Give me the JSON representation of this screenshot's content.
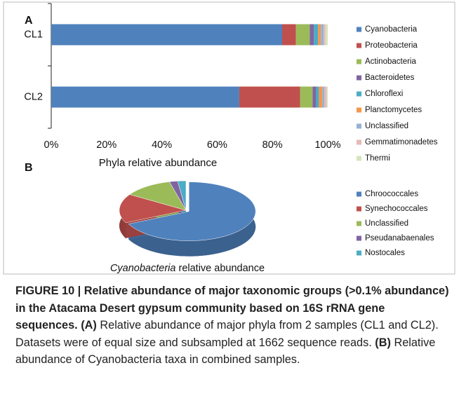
{
  "chart_data": [
    {
      "type": "stacked-bar-horizontal",
      "title": "A",
      "xlabel": "Phyla relative abundance",
      "categories": [
        "CL1",
        "CL2"
      ],
      "series": [
        {
          "name": "Cyanobacteria",
          "color": "#4f81bd",
          "values": [
            83.5,
            68
          ]
        },
        {
          "name": "Proteobacteria",
          "color": "#c0504d",
          "values": [
            5,
            22
          ]
        },
        {
          "name": "Actinobacteria",
          "color": "#9bbb59",
          "values": [
            5,
            4.5
          ]
        },
        {
          "name": "Bacteroidetes",
          "color": "#8064a2",
          "values": [
            1.5,
            1.3
          ]
        },
        {
          "name": "Chloroflexi",
          "color": "#4bacc6",
          "values": [
            1.5,
            1
          ]
        },
        {
          "name": "Planctomycetes",
          "color": "#f79646",
          "values": [
            1,
            1.2
          ]
        },
        {
          "name": "Unclassified",
          "color": "#95b3d7",
          "values": [
            1,
            0.8
          ]
        },
        {
          "name": "Gemmatimonadetes",
          "color": "#e6b9b8",
          "values": [
            0.7,
            0.8
          ]
        },
        {
          "name": "Thermi",
          "color": "#d7e4bd",
          "values": [
            0.8,
            0.4
          ]
        }
      ],
      "xlim": [
        0,
        100
      ],
      "xticks": [
        {
          "value": 0,
          "label": "0%"
        },
        {
          "value": 20,
          "label": "20%"
        },
        {
          "value": 40,
          "label": "40%"
        },
        {
          "value": 60,
          "label": "60%"
        },
        {
          "value": 80,
          "label": "80%"
        },
        {
          "value": 100,
          "label": "100%"
        }
      ],
      "legend": "right"
    },
    {
      "type": "pie3d",
      "title": "B",
      "subject": "Cyanobacteria",
      "xlabel": "relative abundance",
      "categories": [
        "Chroococcales",
        "Synechococcales",
        "Unclassified",
        "Pseudanabaenales",
        "Nostocales"
      ],
      "values": [
        68,
        16,
        12,
        2,
        2
      ],
      "colors": [
        "#4f81bd",
        "#c0504d",
        "#9bbb59",
        "#8064a2",
        "#4bacc6"
      ],
      "legend": "right"
    }
  ],
  "caption": {
    "title": "FIGURE 10 | Relative abundance of major taxonomic groups (>0.1% abundance) in the Atacama Desert gypsum community based on 16S rRNA gene sequences.",
    "a_label": "(A)",
    "a_text": "Relative abundance of major phyla from 2 samples (CL1 and CL2). Datasets were of equal size and subsampled at 1662 sequence reads.",
    "b_label": "(B)",
    "b_text": "Relative abundance of Cyanobacteria taxa in combined samples."
  }
}
